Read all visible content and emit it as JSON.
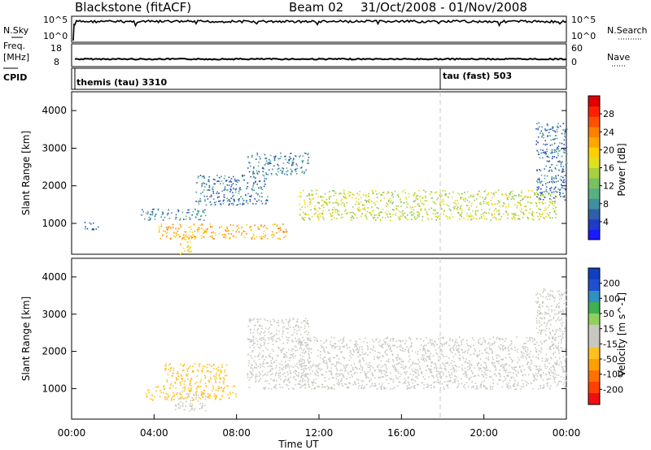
{
  "header": {
    "radar": "Blackstone (fitACF)",
    "beam": "Beam 02",
    "dates": "31/Oct/2008 - 01/Nov/2008"
  },
  "params": {
    "nsky_label": "N.Sky",
    "nsky_ticks": [
      "10^5",
      "10^0"
    ],
    "nsearch_label": "N.Search",
    "nsearch_ticks": [
      "10^5",
      "10^0"
    ],
    "freq_label": "Freq.",
    "freq_unit": "[MHz]",
    "freq_ticks": [
      "18",
      "8"
    ],
    "nave_label": "Nave",
    "nave_ticks": [
      "60",
      "0"
    ],
    "cpid_label": "CPID",
    "cpid_segments": [
      {
        "label": "themis (tau) 3310",
        "start_hour": 0
      },
      {
        "label": "tau (fast) 503",
        "start_hour": 18
      }
    ]
  },
  "x_axis": {
    "label": "Time UT",
    "ticks": [
      "00:00",
      "04:00",
      "08:00",
      "12:00",
      "16:00",
      "20:00",
      "00:00"
    ],
    "range_hours": [
      0,
      24
    ]
  },
  "chart_data": [
    {
      "type": "heatmap",
      "name": "power",
      "ylabel": "Slant Range [km]",
      "yticks": [
        "1000",
        "2000",
        "3000",
        "4000"
      ],
      "ylim": [
        180,
        4500
      ],
      "xlim_hours": [
        0,
        24
      ],
      "colorbar": {
        "label": "Power [dB]",
        "ticks": [
          "4",
          "8",
          "12",
          "16",
          "20",
          "24",
          "28"
        ],
        "range": [
          0,
          32
        ],
        "colors": [
          "#1a1aff",
          "#1f3cc8",
          "#2f5fa8",
          "#3f8fa0",
          "#58b080",
          "#78c060",
          "#a8d040",
          "#e0e020",
          "#ffd000",
          "#ffa800",
          "#ff8000",
          "#ff5000",
          "#ff2000",
          "#e00000"
        ]
      },
      "regions": [
        {
          "t_start": 0.5,
          "t_end": 1.3,
          "r_min": 850,
          "r_max": 1050,
          "level": 6
        },
        {
          "t_start": 3.3,
          "t_end": 6.5,
          "r_min": 1100,
          "r_max": 1400,
          "level": 7
        },
        {
          "t_start": 4.2,
          "t_end": 10.5,
          "r_min": 600,
          "r_max": 1000,
          "level": 22
        },
        {
          "t_start": 5.2,
          "t_end": 5.8,
          "r_min": 200,
          "r_max": 700,
          "level": 20
        },
        {
          "t_start": 6.0,
          "t_end": 9.5,
          "r_min": 1500,
          "r_max": 2300,
          "level": 6
        },
        {
          "t_start": 8.5,
          "t_end": 11.5,
          "r_min": 2300,
          "r_max": 2900,
          "level": 7
        },
        {
          "t_start": 11.0,
          "t_end": 23.5,
          "r_min": 1100,
          "r_max": 1900,
          "level": 16
        },
        {
          "t_start": 22.5,
          "t_end": 24.0,
          "r_min": 1600,
          "r_max": 3700,
          "level": 6
        }
      ]
    },
    {
      "type": "heatmap",
      "name": "velocity",
      "ylabel": "Slant Range [km]",
      "yticks": [
        "1000",
        "2000",
        "3000",
        "4000"
      ],
      "ylim": [
        180,
        4500
      ],
      "xlim_hours": [
        0,
        24
      ],
      "colorbar": {
        "label": "Velocity [m s^-1]",
        "ticks": [
          "200",
          "100",
          "50",
          "15",
          "-15",
          "-50",
          "-100",
          "-200"
        ],
        "range": [
          -250,
          250
        ],
        "colors": [
          "#1040c0",
          "#2050d0",
          "#3090c0",
          "#40b050",
          "#90d060",
          "#c8c8c0",
          "#c8c8c0",
          "#ffc020",
          "#ffa000",
          "#ff7000",
          "#ff4000",
          "#f01010"
        ]
      },
      "regions": [
        {
          "t_start": 3.6,
          "t_end": 8.0,
          "r_min": 700,
          "r_max": 1100,
          "value": -60
        },
        {
          "t_start": 4.5,
          "t_end": 7.5,
          "r_min": 1100,
          "r_max": 1700,
          "value": -70
        },
        {
          "t_start": 5.0,
          "t_end": 6.5,
          "r_min": 400,
          "r_max": 900,
          "value": 0
        },
        {
          "t_start": 8.5,
          "t_end": 11.5,
          "r_min": 1000,
          "r_max": 2900,
          "value": 0
        },
        {
          "t_start": 11.0,
          "t_end": 24.0,
          "r_min": 1000,
          "r_max": 2400,
          "value": 0
        },
        {
          "t_start": 22.5,
          "t_end": 24.0,
          "r_min": 2400,
          "r_max": 3700,
          "value": -20
        }
      ]
    }
  ]
}
